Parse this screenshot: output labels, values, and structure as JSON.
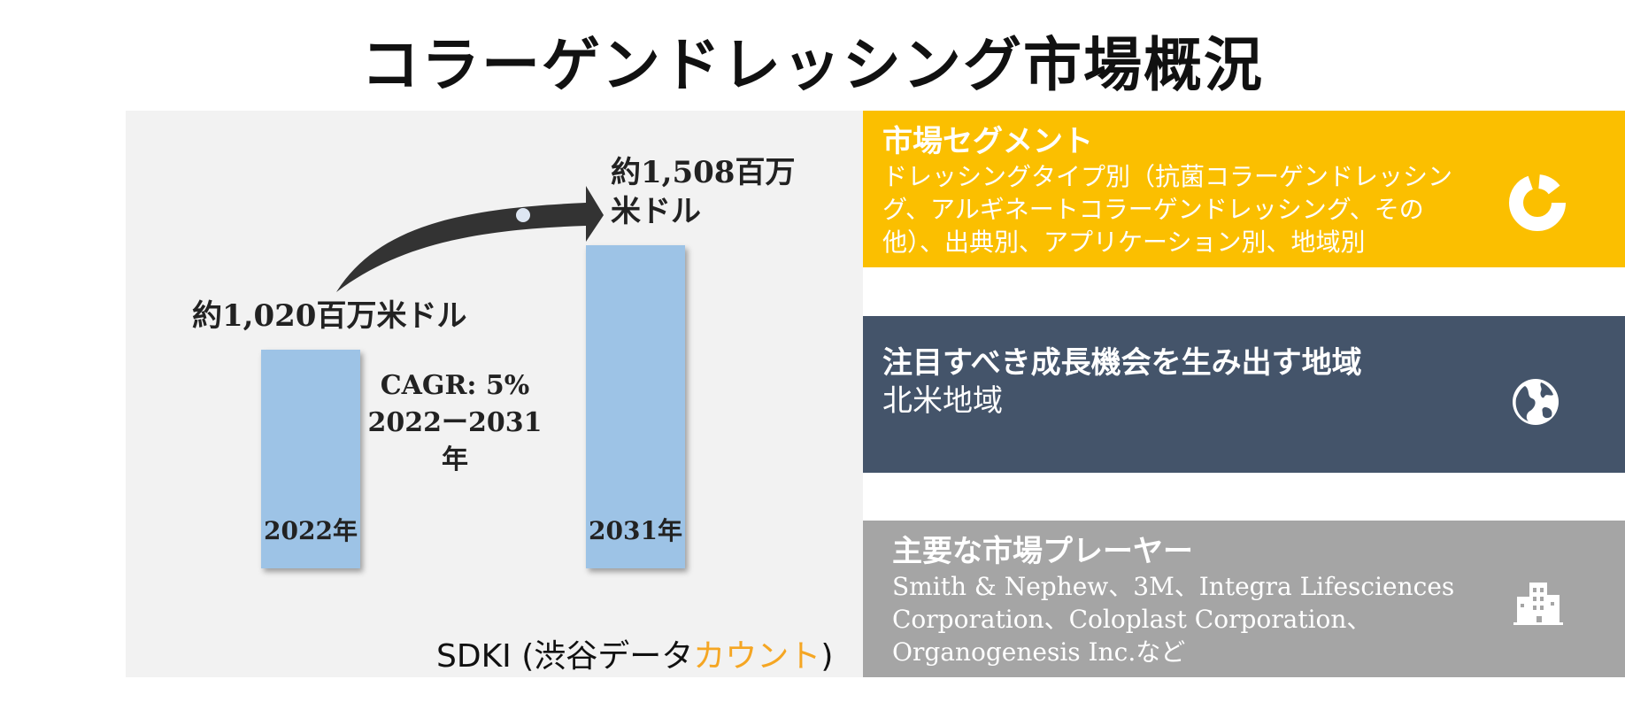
{
  "title": "コラーゲンドレッシング市場概況",
  "chart": {
    "bar_2022": {
      "year_label": "2022年",
      "value_label": "約1,020百万米ドル",
      "value": 1020
    },
    "bar_2031": {
      "year_label": "2031年",
      "value_label_line1": "約1,508百万",
      "value_label_line2": "米ドル",
      "value": 1508
    },
    "cagr_line1": "CAGR: 5%",
    "cagr_line2": "2022ー2031年",
    "colors": {
      "bar": "#9dc3e6",
      "arrow": "#333333"
    }
  },
  "source": {
    "prefix": "SDKI (渋谷データ",
    "accent": "カウント",
    "suffix": ")"
  },
  "cards": [
    {
      "title": "市場セグメント",
      "body": "ドレッシングタイプ別（抗菌コラーゲンドレッシング、アルギネートコラーゲンドレッシング、その他）、出典別、アプリケーション別、地域別",
      "color": "#fbbf00",
      "icon": "donut-chart-icon"
    },
    {
      "title": "注目すべき成長機会を生み出す地域",
      "body": "北米地域",
      "color": "#44546a",
      "icon": "globe-icon"
    },
    {
      "title": "主要な市場プレーヤー",
      "body": "Smith & Nephew、3M、Integra Lifesciences Corporation、Coloplast Corporation、Organogenesis Inc.など",
      "color": "#a5a5a5",
      "icon": "buildings-icon"
    }
  ]
}
